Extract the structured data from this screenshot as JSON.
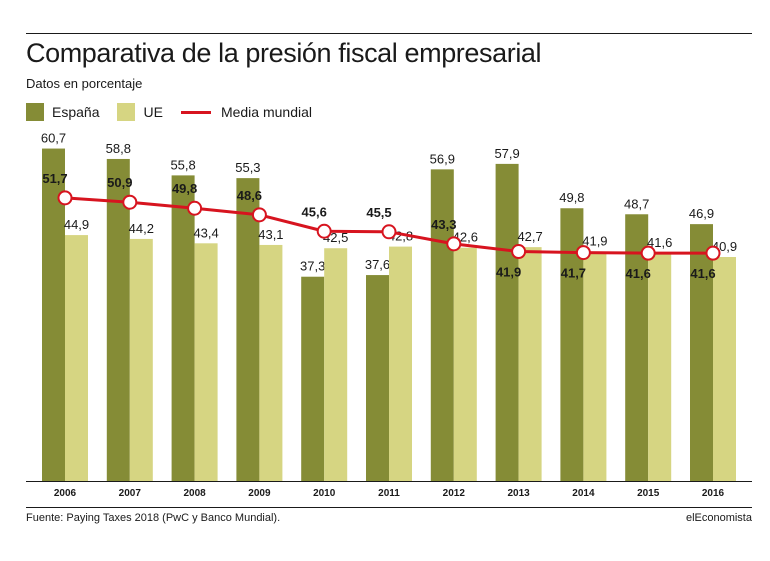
{
  "header": {
    "title": "Comparativa de la presión fiscal empresarial",
    "subtitle": "Datos en porcentaje"
  },
  "footer": {
    "source": "Fuente: Paying Taxes 2018 (PwC y Banco Mundial).",
    "brand": "elEconomista"
  },
  "colors": {
    "espana": "#858c36",
    "ue": "#d6d582",
    "media": "#d7141f"
  },
  "chart_data": {
    "type": "bar",
    "title": "Comparativa de la presión fiscal empresarial",
    "subtitle": "Datos en porcentaje",
    "categories": [
      "2006",
      "2007",
      "2008",
      "2009",
      "2010",
      "2011",
      "2012",
      "2013",
      "2014",
      "2015",
      "2016"
    ],
    "ylim": [
      0,
      65
    ],
    "grid": false,
    "legend_position": "top-left",
    "decimal_separator": ",",
    "series": [
      {
        "name": "España",
        "type": "bar",
        "values": [
          60.7,
          58.8,
          55.8,
          55.3,
          37.3,
          37.6,
          56.9,
          57.9,
          49.8,
          48.7,
          46.9
        ]
      },
      {
        "name": "UE",
        "type": "bar",
        "values": [
          44.9,
          44.2,
          43.4,
          43.1,
          42.5,
          42.8,
          42.6,
          42.7,
          41.9,
          41.6,
          40.9
        ]
      },
      {
        "name": "Media mundial",
        "type": "line",
        "values": [
          51.7,
          50.9,
          49.8,
          48.6,
          45.6,
          45.5,
          43.3,
          41.9,
          41.7,
          41.6,
          41.6
        ]
      }
    ]
  }
}
